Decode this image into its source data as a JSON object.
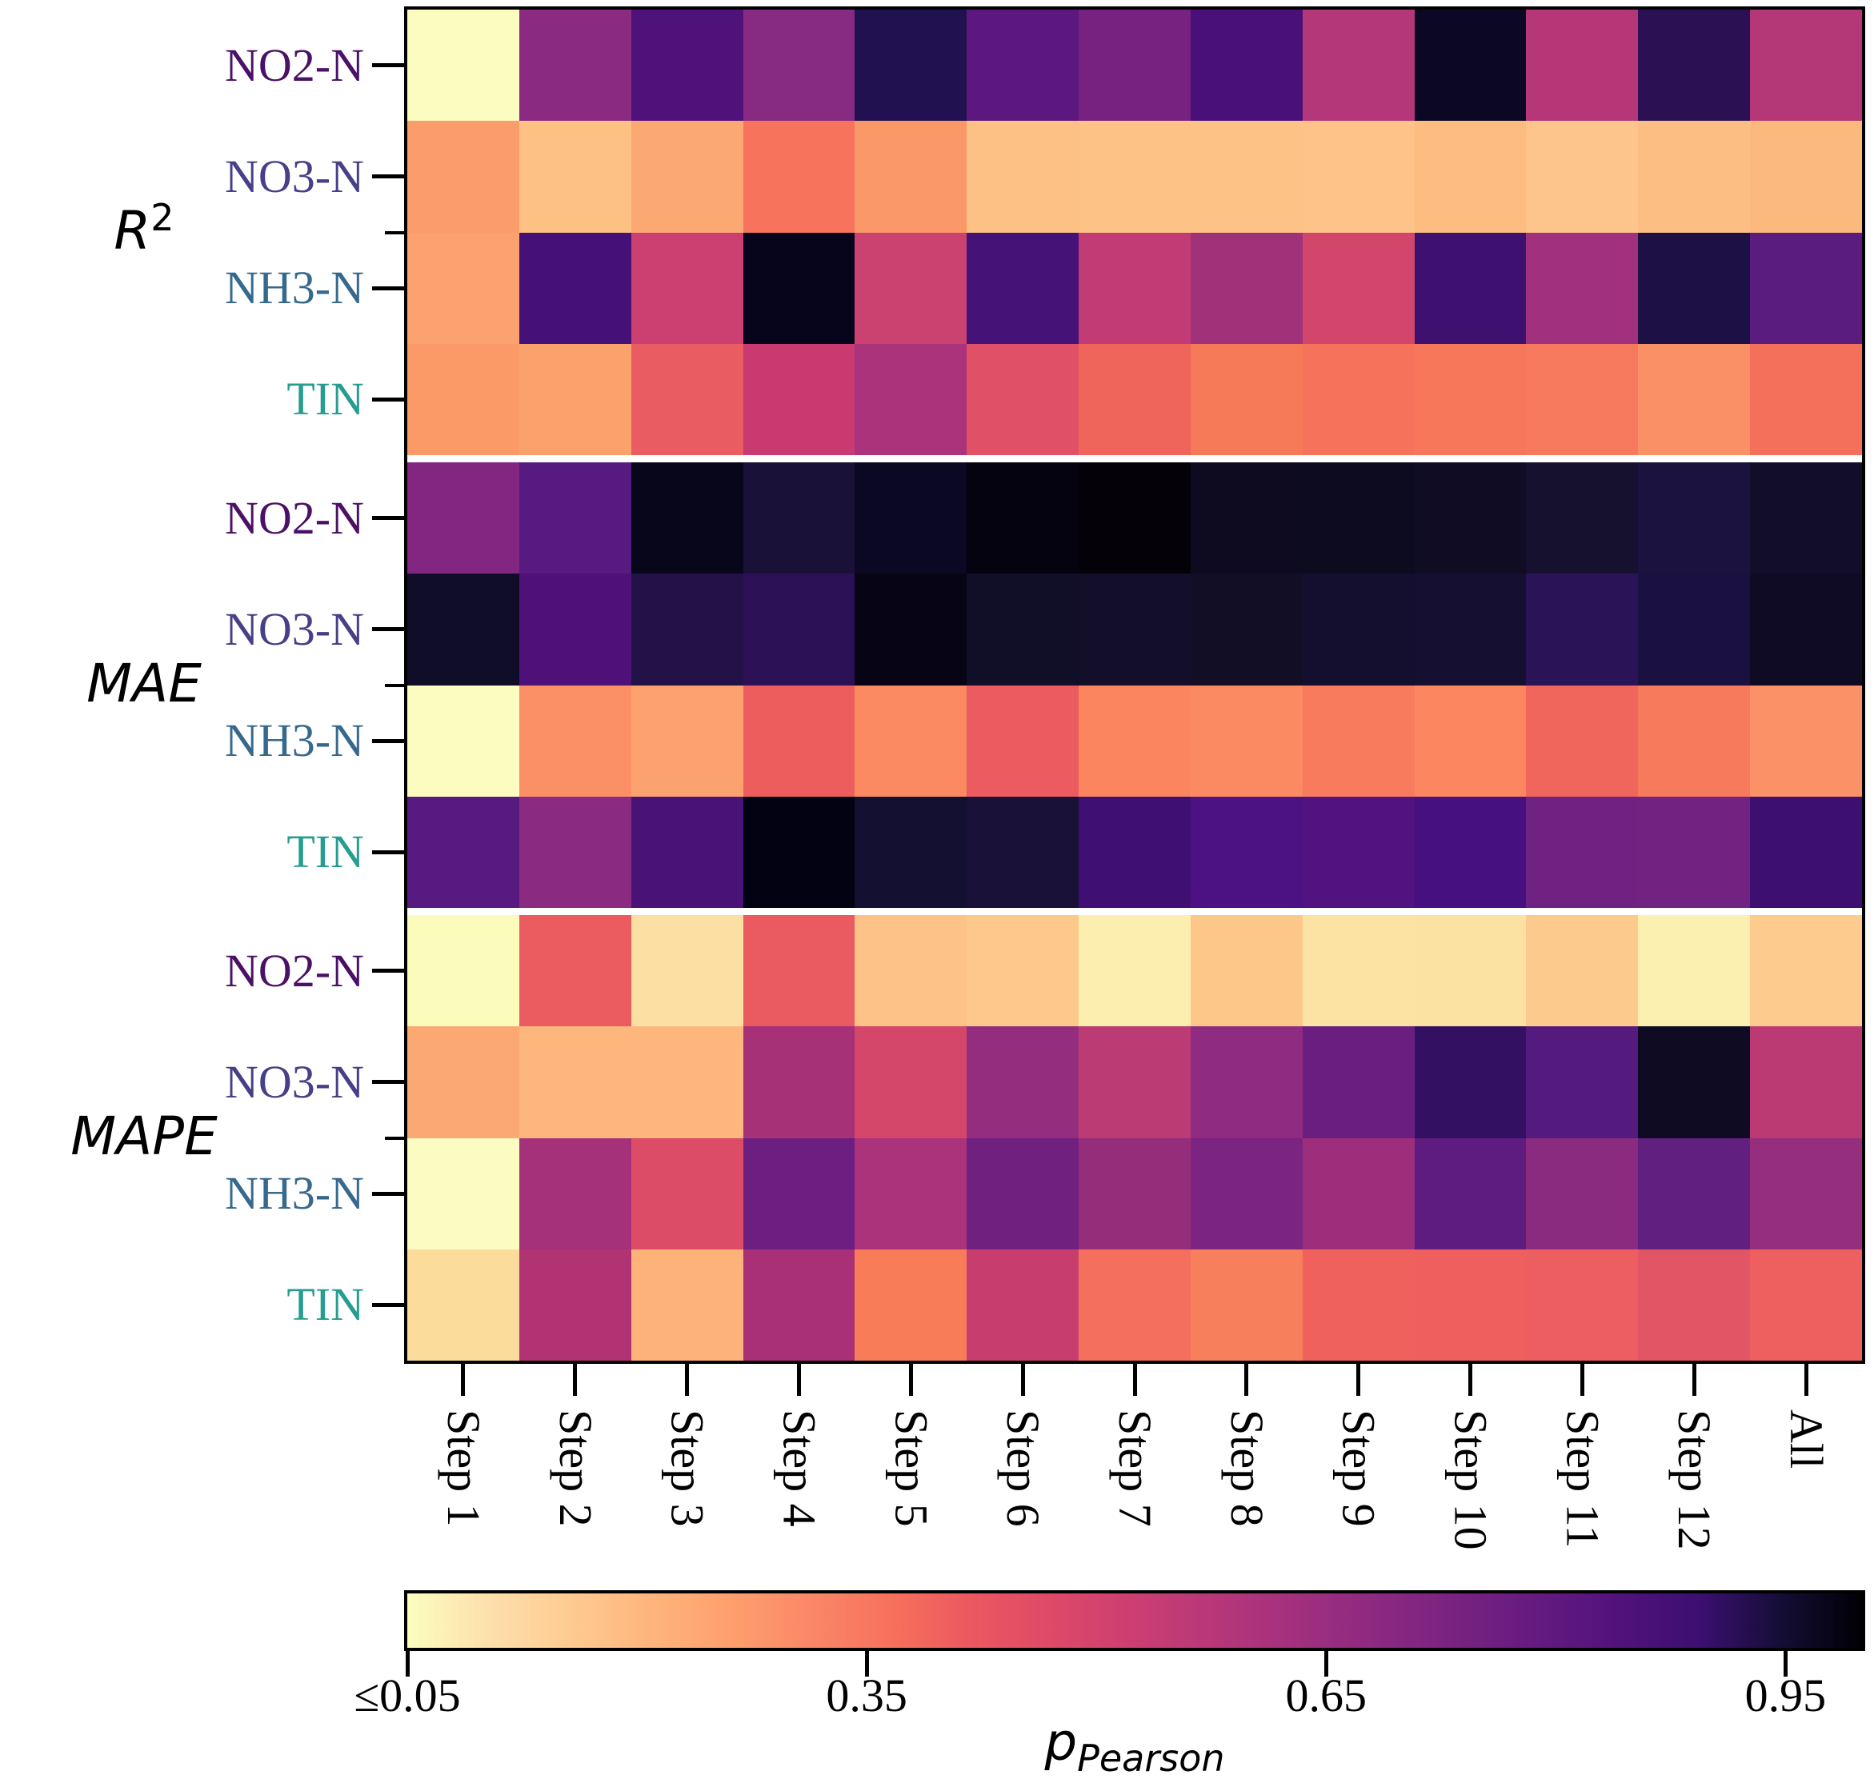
{
  "figure": {
    "background": "#ffffff",
    "axis_color": "#000000"
  },
  "chart_data": {
    "type": "heatmap",
    "title": "",
    "grid": false,
    "x_categories": [
      "Step 1",
      "Step 2",
      "Step 3",
      "Step 4",
      "Step 5",
      "Step 6",
      "Step 7",
      "Step 8",
      "Step 9",
      "Step 10",
      "Step 11",
      "Step 12",
      "All"
    ],
    "value_name": "p_Pearson",
    "row_groups": [
      {
        "label": "R",
        "label_sup": "2",
        "rows": [
          {
            "label": "NO2-N",
            "label_color": "#4b1166",
            "p_values": [
              0.05,
              0.62,
              0.76,
              0.63,
              0.86,
              0.72,
              0.67,
              0.77,
              0.52,
              0.93,
              0.52,
              0.84,
              0.52
            ],
            "cell_colors": [
              "#fbfdc0",
              "#8a2a81",
              "#4f127b",
              "#872a81",
              "#221150",
              "#5c187f",
              "#772281",
              "#49107a",
              "#b43879",
              "#0b0724",
              "#b53778",
              "#2b1154",
              "#b43878"
            ]
          },
          {
            "label": "NO3-N",
            "label_color": "#474088",
            "p_values": [
              0.24,
              0.17,
              0.22,
              0.33,
              0.26,
              0.17,
              0.17,
              0.17,
              0.16,
              0.18,
              0.16,
              0.18,
              0.19
            ],
            "cell_colors": [
              "#fb9d6a",
              "#fdc183",
              "#fca873",
              "#f7735c",
              "#fb9868",
              "#fdc185",
              "#fdc286",
              "#fdc286",
              "#fdc388",
              "#fdbd80",
              "#fdc48b",
              "#fdbe84",
              "#fcb97e"
            ]
          },
          {
            "label": "NH3-N",
            "label_color": "#36698e",
            "p_values": [
              0.23,
              0.78,
              0.48,
              0.95,
              0.48,
              0.78,
              0.5,
              0.58,
              0.45,
              0.8,
              0.57,
              0.87,
              0.72
            ],
            "cell_colors": [
              "#fca26f",
              "#451077",
              "#cb4071",
              "#07051c",
              "#cb4271",
              "#451277",
              "#c23b74",
              "#a03279",
              "#d2466c",
              "#3e1170",
              "#a1307e",
              "#1c1044",
              "#5b1c80"
            ]
          },
          {
            "label": "TIN",
            "label_color": "#279c90",
            "p_values": [
              0.25,
              0.23,
              0.39,
              0.49,
              0.56,
              0.42,
              0.36,
              0.31,
              0.33,
              0.32,
              0.32,
              0.27,
              0.34
            ],
            "cell_colors": [
              "#fb9a67",
              "#fba26c",
              "#e85c62",
              "#c83a70",
              "#aa337c",
              "#e05066",
              "#ef655b",
              "#f77a58",
              "#f5735a",
              "#f7775a",
              "#f87a5e",
              "#fa9065",
              "#f5705a"
            ]
          }
        ]
      },
      {
        "label": "MAE",
        "label_sup": "",
        "rows": [
          {
            "label": "NO2-N",
            "label_color": "#4b1166",
            "p_values": [
              0.64,
              0.73,
              0.94,
              0.88,
              0.93,
              0.96,
              0.97,
              0.92,
              0.92,
              0.91,
              0.89,
              0.87,
              0.9
            ],
            "cell_colors": [
              "#832681",
              "#571a80",
              "#08061a",
              "#1a1138",
              "#0b0823",
              "#050310",
              "#040208",
              "#0e0b20",
              "#0d0b1f",
              "#0f0c24",
              "#16112f",
              "#1c1240",
              "#120e2a"
            ]
          },
          {
            "label": "NO3-N",
            "label_color": "#474088",
            "p_values": [
              0.91,
              0.76,
              0.86,
              0.84,
              0.95,
              0.91,
              0.9,
              0.91,
              0.9,
              0.89,
              0.84,
              0.87,
              0.91
            ],
            "cell_colors": [
              "#100d29",
              "#4d1179",
              "#221247",
              "#2c1156",
              "#070415",
              "#110e28",
              "#130f2b",
              "#110e26",
              "#140f2e",
              "#151031",
              "#2b1358",
              "#1b1140",
              "#0f0b24"
            ]
          },
          {
            "label": "NH3-N",
            "label_color": "#36698e",
            "p_values": [
              0.05,
              0.27,
              0.23,
              0.38,
              0.28,
              0.38,
              0.29,
              0.28,
              0.31,
              0.29,
              0.36,
              0.32,
              0.27
            ],
            "cell_colors": [
              "#fcfcc1",
              "#fb9066",
              "#fca26e",
              "#ee5d5e",
              "#fb8a62",
              "#ec5b60",
              "#fb855f",
              "#fb8a62",
              "#f97b5d",
              "#fb8660",
              "#f0655c",
              "#f87a5d",
              "#fb9166"
            ]
          },
          {
            "label": "TIN",
            "label_color": "#279c90",
            "p_values": [
              0.73,
              0.62,
              0.77,
              0.97,
              0.9,
              0.88,
              0.79,
              0.76,
              0.75,
              0.77,
              0.68,
              0.68,
              0.8
            ],
            "cell_colors": [
              "#571a80",
              "#8b2a81",
              "#481277",
              "#030212",
              "#141031",
              "#191138",
              "#400f74",
              "#4c1182",
              "#51137f",
              "#471080",
              "#702282",
              "#722381",
              "#3d0f70"
            ]
          }
        ]
      },
      {
        "label": "MAPE",
        "label_sup": "",
        "rows": [
          {
            "label": "NO2-N",
            "label_color": "#4b1166",
            "p_values": [
              0.05,
              0.38,
              0.11,
              0.38,
              0.17,
              0.15,
              0.08,
              0.15,
              0.09,
              0.1,
              0.14,
              0.07,
              0.14
            ],
            "cell_colors": [
              "#fbfcbc",
              "#ea5c60",
              "#fcdfa2",
              "#ea5a61",
              "#fdc287",
              "#fdc88c",
              "#fceeae",
              "#fdc78a",
              "#fce3a4",
              "#fce2a2",
              "#fdca8d",
              "#fcf0b0",
              "#fdcb8e"
            ]
          },
          {
            "label": "NO3-N",
            "label_color": "#474088",
            "p_values": [
              0.22,
              0.19,
              0.19,
              0.56,
              0.45,
              0.6,
              0.51,
              0.61,
              0.69,
              0.82,
              0.74,
              0.92,
              0.51
            ],
            "cell_colors": [
              "#fba873",
              "#fdb77d",
              "#fdb77d",
              "#a73177",
              "#d5466b",
              "#952d7f",
              "#bb3b74",
              "#8f2b80",
              "#6a1f80",
              "#331061",
              "#551a7e",
              "#0e0b22",
              "#bb3a74"
            ]
          },
          {
            "label": "NH3-N",
            "label_color": "#36698e",
            "p_values": [
              0.05,
              0.57,
              0.43,
              0.69,
              0.56,
              0.68,
              0.6,
              0.66,
              0.59,
              0.72,
              0.62,
              0.71,
              0.6
            ],
            "cell_colors": [
              "#fbfcc2",
              "#a5317b",
              "#dd4c66",
              "#6d1f81",
              "#aa337b",
              "#70217f",
              "#962d7b",
              "#7c2481",
              "#9c2e7b",
              "#5e1b80",
              "#8b2b7f",
              "#61207f",
              "#952f7d"
            ]
          },
          {
            "label": "TIN",
            "label_color": "#279c90",
            "p_values": [
              0.11,
              0.53,
              0.2,
              0.56,
              0.31,
              0.49,
              0.34,
              0.31,
              0.37,
              0.37,
              0.38,
              0.42,
              0.37
            ],
            "cell_colors": [
              "#fcdc9a",
              "#b23373",
              "#fcb279",
              "#a93077",
              "#f97c59",
              "#c73e6e",
              "#f4705c",
              "#f87f5c",
              "#ef615c",
              "#ee5f5e",
              "#ec5e60",
              "#e15565",
              "#ee5f5f"
            ]
          }
        ]
      }
    ],
    "colorbar": {
      "label_main": "p",
      "label_sub": "Pearson",
      "colormap": "magma_r",
      "range": [
        0.05,
        1.0
      ],
      "tick_values": [
        0.05,
        0.35,
        0.65,
        0.95
      ],
      "tick_labels": [
        "≤0.05",
        "0.35",
        "0.65",
        "0.95"
      ],
      "gradient_stops": [
        "#fcfdbf",
        "#fde0ab",
        "#fecb92",
        "#feb57c",
        "#fe9f6d",
        "#fa8768",
        "#f7705c",
        "#eb5760",
        "#de4968",
        "#cb3e72",
        "#b73779",
        "#a2307e",
        "#8c2981",
        "#782281",
        "#641a80",
        "#51127c",
        "#3b0f70",
        "#140e36",
        "#000004"
      ]
    }
  }
}
